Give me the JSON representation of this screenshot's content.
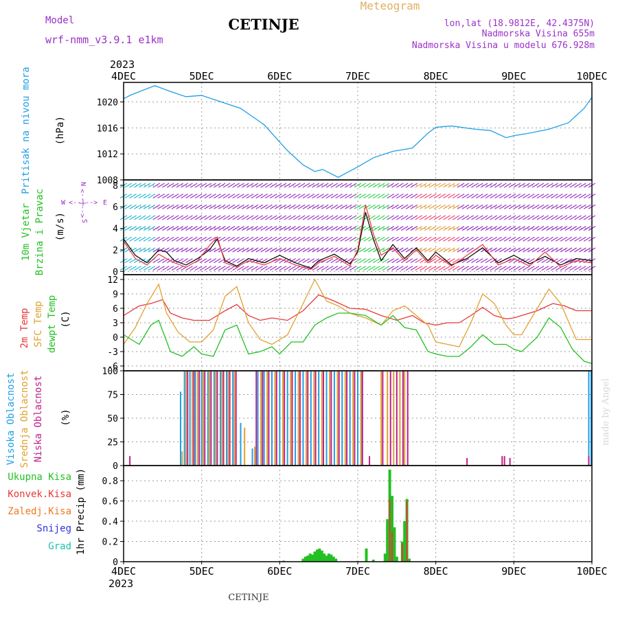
{
  "header": {
    "model_label": "Model",
    "model_name": "wrf-nmm_v3.9.1 e1km",
    "station": "CETINJE",
    "product": "Meteogram",
    "lonlat": "lon,lat (18.9812E, 42.4375N)",
    "elevation": "Nadmorska Visina 655m",
    "model_elevation": "Nadmorska Visina u modelu 676.928m"
  },
  "footer": {
    "station": "CETINJE",
    "credit": "made by Angel"
  },
  "colors": {
    "pressure": "#1e9fe6",
    "wind_label": "#22c022",
    "wind_units": "#9b30c8",
    "temp2m": "#e63838",
    "sfc": "#e0a030",
    "dew": "#22c022",
    "high": "#1e9fe6",
    "mid": "#e0a030",
    "low": "#c0208a",
    "total_precip": "#22c022",
    "conv": "#e63838",
    "frz": "#f07820",
    "snow": "#3030e0",
    "grad": "#20c0b0",
    "year": "#000000",
    "grid": "#999999"
  },
  "time_axis": {
    "year": "2023",
    "labels": [
      "4DEC",
      "5DEC",
      "6DEC",
      "7DEC",
      "8DEC",
      "9DEC",
      "10DEC"
    ]
  },
  "chart_data": [
    {
      "type": "line",
      "name": "pressure",
      "ylabel": "Pritisak na nivou mora",
      "units": "(hPa)",
      "ylim": [
        1008,
        1023
      ],
      "yticks": [
        1008,
        1012,
        1016,
        1020
      ],
      "grid": true,
      "x_days": [
        0,
        0.1,
        0.25,
        0.4,
        0.6,
        0.8,
        1.0,
        1.2,
        1.5,
        1.8,
        2.1,
        2.3,
        2.45,
        2.55,
        2.75,
        3.0,
        3.2,
        3.45,
        3.7,
        3.9,
        4.0,
        4.2,
        4.5,
        4.7,
        4.9,
        5.0,
        5.2,
        5.45,
        5.7,
        5.9,
        6.0
      ],
      "values": [
        1020.5,
        1021.1,
        1021.8,
        1022.5,
        1021.6,
        1020.8,
        1021.0,
        1020.2,
        1019.0,
        1016.5,
        1012.5,
        1010.3,
        1009.3,
        1009.6,
        1008.4,
        1010.0,
        1011.4,
        1012.4,
        1012.9,
        1015.2,
        1016.1,
        1016.3,
        1015.8,
        1015.6,
        1014.5,
        1014.8,
        1015.2,
        1015.8,
        1016.8,
        1019.0,
        1020.7
      ]
    },
    {
      "type": "line",
      "name": "wind",
      "ylabel": "10m Vjetar Brzina i Pravac",
      "units": "(m/s)",
      "compass": [
        "N",
        "W",
        "E",
        "S"
      ],
      "ylim": [
        -0.3,
        8.5
      ],
      "yticks": [
        0,
        2,
        4,
        6,
        8
      ],
      "grid": true,
      "series": [
        {
          "color": "black",
          "x_days": [
            0,
            0.15,
            0.3,
            0.45,
            0.55,
            0.65,
            0.8,
            0.95,
            1.1,
            1.2,
            1.3,
            1.45,
            1.6,
            1.8,
            2.0,
            2.2,
            2.4,
            2.5,
            2.7,
            2.9,
            3.0,
            3.1,
            3.2,
            3.3,
            3.45,
            3.6,
            3.75,
            3.9,
            4.0,
            4.2,
            4.4,
            4.6,
            4.8,
            5.0,
            5.2,
            5.4,
            5.6,
            5.8,
            6.0
          ],
          "values": [
            3.0,
            1.5,
            0.8,
            2.0,
            1.8,
            1.0,
            0.6,
            1.2,
            2.0,
            3.0,
            1.0,
            0.5,
            1.2,
            0.8,
            1.5,
            0.8,
            0.3,
            1.0,
            1.6,
            0.7,
            1.8,
            5.5,
            3.0,
            1.0,
            2.5,
            1.2,
            2.2,
            1.0,
            1.8,
            0.6,
            1.2,
            2.2,
            0.8,
            1.5,
            0.7,
            1.4,
            0.6,
            1.2,
            1.0
          ]
        },
        {
          "color": "red",
          "x_days": [
            0,
            0.15,
            0.3,
            0.45,
            0.55,
            0.65,
            0.8,
            0.95,
            1.1,
            1.2,
            1.3,
            1.45,
            1.6,
            1.8,
            2.0,
            2.2,
            2.4,
            2.5,
            2.7,
            2.9,
            3.0,
            3.1,
            3.2,
            3.3,
            3.45,
            3.6,
            3.75,
            3.9,
            4.0,
            4.2,
            4.4,
            4.6,
            4.8,
            5.0,
            5.2,
            5.4,
            5.6,
            5.8,
            6.0
          ],
          "values": [
            2.8,
            1.2,
            0.6,
            1.6,
            1.2,
            0.8,
            0.4,
            1.0,
            2.4,
            3.2,
            0.8,
            0.4,
            1.0,
            0.6,
            1.2,
            0.6,
            0.2,
            0.8,
            1.4,
            0.5,
            2.0,
            6.2,
            3.5,
            1.5,
            2.2,
            1.0,
            2.0,
            0.8,
            1.5,
            0.5,
            1.5,
            2.5,
            0.6,
            1.2,
            0.5,
            1.8,
            0.4,
            1.0,
            0.8
          ]
        }
      ]
    },
    {
      "type": "line",
      "name": "temperature",
      "ylabels": [
        "2m Temp",
        "SFC Temp",
        "dewpt Temp"
      ],
      "units": "(C)",
      "ylim": [
        -7,
        13
      ],
      "yticks": [
        -6,
        -3,
        0,
        3,
        6,
        9,
        12
      ],
      "grid": true,
      "series": [
        {
          "name": "2m Temp",
          "x_days": [
            0,
            0.2,
            0.35,
            0.5,
            0.6,
            0.75,
            0.9,
            1.1,
            1.3,
            1.45,
            1.6,
            1.75,
            1.9,
            2.1,
            2.3,
            2.5,
            2.7,
            2.9,
            3.1,
            3.3,
            3.5,
            3.7,
            3.85,
            4.0,
            4.15,
            4.3,
            4.45,
            4.6,
            4.75,
            4.9,
            5.0,
            5.1,
            5.3,
            5.5,
            5.65,
            5.8,
            6.0
          ],
          "values": [
            4.5,
            6.5,
            7.0,
            7.8,
            5.0,
            4.0,
            3.5,
            3.5,
            5.5,
            6.8,
            4.5,
            3.5,
            4.0,
            3.5,
            5.5,
            8.8,
            7.5,
            6.0,
            5.8,
            4.5,
            3.5,
            4.5,
            3.0,
            2.5,
            3.0,
            3.0,
            4.5,
            6.2,
            4.5,
            3.8,
            4.0,
            4.5,
            5.5,
            7.0,
            6.5,
            5.5,
            5.5
          ]
        },
        {
          "name": "SFC Temp",
          "x_days": [
            0,
            0.15,
            0.3,
            0.45,
            0.55,
            0.7,
            0.85,
            1.0,
            1.15,
            1.3,
            1.45,
            1.6,
            1.75,
            1.9,
            2.1,
            2.3,
            2.45,
            2.6,
            2.75,
            2.9,
            3.1,
            3.3,
            3.45,
            3.6,
            3.75,
            3.9,
            4.0,
            4.15,
            4.3,
            4.45,
            4.6,
            4.75,
            4.9,
            5.0,
            5.1,
            5.3,
            5.45,
            5.6,
            5.8,
            6.0
          ],
          "values": [
            -1.5,
            2.0,
            7.0,
            11.0,
            5.0,
            1.0,
            -1.0,
            -1.0,
            1.5,
            8.5,
            10.5,
            3.0,
            -0.5,
            -1.5,
            0.5,
            7.0,
            12.0,
            7.5,
            6.5,
            5.0,
            4.0,
            2.5,
            5.5,
            6.5,
            4.5,
            2.5,
            -1.0,
            -1.5,
            -2.0,
            3.0,
            9.0,
            7.0,
            2.5,
            0.5,
            0.5,
            6.0,
            10.0,
            7.0,
            -0.5,
            -0.5
          ]
        },
        {
          "name": "dewpt Temp",
          "x_days": [
            0,
            0.2,
            0.35,
            0.45,
            0.6,
            0.75,
            0.9,
            1.0,
            1.15,
            1.3,
            1.45,
            1.6,
            1.75,
            1.9,
            2.0,
            2.15,
            2.3,
            2.45,
            2.6,
            2.75,
            2.9,
            3.1,
            3.3,
            3.45,
            3.6,
            3.75,
            3.9,
            4.0,
            4.15,
            4.3,
            4.45,
            4.6,
            4.75,
            4.9,
            5.0,
            5.1,
            5.3,
            5.45,
            5.6,
            5.75,
            5.9,
            6.0
          ],
          "values": [
            0.5,
            -1.5,
            2.5,
            3.5,
            -3.0,
            -4.0,
            -2.0,
            -3.5,
            -4.0,
            1.5,
            2.5,
            -3.5,
            -3.0,
            -2.0,
            -3.5,
            -1.0,
            -1.0,
            2.5,
            4.0,
            5.0,
            5.0,
            4.5,
            2.5,
            4.5,
            2.0,
            1.5,
            -3.0,
            -3.5,
            -4.0,
            -4.0,
            -2.0,
            0.5,
            -1.5,
            -1.5,
            -2.5,
            -3.0,
            0.0,
            4.0,
            2.0,
            -2.5,
            -5.0,
            -5.5
          ]
        }
      ]
    },
    {
      "type": "bar",
      "name": "cloudiness",
      "ylabels": [
        "Visoka Oblacnost",
        "Srednja Oblacnost",
        "Niska Oblacnost"
      ],
      "units": "(%)",
      "ylim": [
        0,
        100
      ],
      "yticks": [
        0,
        25,
        50,
        75,
        100
      ],
      "grid": true,
      "series": [
        {
          "name": "Visoka Oblacnost",
          "x_days": [
            0.73,
            0.78,
            0.85,
            0.92,
            1.0,
            1.08,
            1.16,
            1.24,
            1.32,
            1.4,
            1.5,
            1.65,
            1.72,
            1.8,
            1.9,
            2.0,
            2.1,
            2.2,
            2.3,
            2.4,
            2.5,
            2.6,
            2.7,
            2.8,
            2.9,
            3.0,
            3.05,
            5.96,
            5.99
          ],
          "values": [
            78,
            100,
            100,
            100,
            100,
            100,
            100,
            100,
            100,
            100,
            45,
            18,
            100,
            100,
            100,
            100,
            100,
            100,
            100,
            100,
            100,
            100,
            100,
            100,
            100,
            100,
            100,
            100,
            100
          ]
        },
        {
          "name": "Srednja Oblacnost",
          "x_days": [
            0.75,
            0.8,
            0.88,
            0.95,
            1.02,
            1.1,
            1.18,
            1.26,
            1.34,
            1.42,
            1.55,
            1.68,
            1.76,
            1.84,
            1.94,
            2.04,
            2.14,
            2.24,
            2.34,
            2.44,
            2.54,
            2.64,
            2.74,
            2.84,
            2.94,
            3.04,
            3.3,
            3.38,
            3.46,
            3.54,
            3.6
          ],
          "values": [
            15,
            100,
            100,
            100,
            100,
            100,
            100,
            100,
            100,
            100,
            40,
            20,
            100,
            100,
            100,
            100,
            100,
            100,
            100,
            100,
            100,
            100,
            100,
            100,
            100,
            100,
            100,
            100,
            100,
            100,
            100
          ]
        },
        {
          "name": "Niska Oblacnost",
          "x_days": [
            0.08,
            0.82,
            0.9,
            0.97,
            1.04,
            1.12,
            1.2,
            1.28,
            1.36,
            1.44,
            1.7,
            1.78,
            1.86,
            1.96,
            2.06,
            2.16,
            2.26,
            2.36,
            2.46,
            2.56,
            2.66,
            2.76,
            2.86,
            2.96,
            3.06,
            3.15,
            3.32,
            3.42,
            3.5,
            3.58,
            3.64,
            4.4,
            4.85,
            4.88,
            4.95,
            5.96
          ],
          "values": [
            10,
            100,
            100,
            100,
            100,
            100,
            100,
            100,
            100,
            100,
            100,
            100,
            100,
            100,
            100,
            100,
            100,
            100,
            100,
            100,
            100,
            100,
            100,
            100,
            100,
            10,
            100,
            100,
            100,
            100,
            100,
            8,
            10,
            10,
            8,
            10
          ]
        }
      ]
    },
    {
      "type": "bar",
      "name": "precipitation",
      "legend": [
        "Ukupna Kisa",
        "Konvek.Kisa",
        "Zaledj.Kisa",
        "Snijeg",
        "Grad"
      ],
      "ylabel": "1hr Precip",
      "units": "(mm)",
      "ylim": [
        0,
        0.95
      ],
      "yticks": [
        0,
        0.2,
        0.4,
        0.6,
        0.8
      ],
      "grid": true,
      "series": [
        {
          "name": "Ukupna Kisa",
          "x_days": [
            2.05,
            2.3,
            2.33,
            2.36,
            2.39,
            2.42,
            2.45,
            2.48,
            2.51,
            2.54,
            2.57,
            2.6,
            2.63,
            2.66,
            2.69,
            2.72,
            3.11,
            3.2,
            3.35,
            3.38,
            3.41,
            3.44,
            3.47,
            3.5,
            3.57,
            3.6,
            3.63,
            3.66
          ],
          "values": [
            0.01,
            0.03,
            0.05,
            0.06,
            0.08,
            0.07,
            0.1,
            0.12,
            0.13,
            0.11,
            0.08,
            0.06,
            0.08,
            0.07,
            0.05,
            0.03,
            0.13,
            0.02,
            0.08,
            0.42,
            0.91,
            0.65,
            0.34,
            0.05,
            0.2,
            0.4,
            0.62,
            0.03
          ]
        },
        {
          "name": "Konvek.Kisa",
          "x_days": [
            3.41,
            3.44,
            3.57,
            3.63
          ],
          "values": [
            0.62,
            0.3,
            0.18,
            0.6
          ]
        }
      ]
    }
  ]
}
